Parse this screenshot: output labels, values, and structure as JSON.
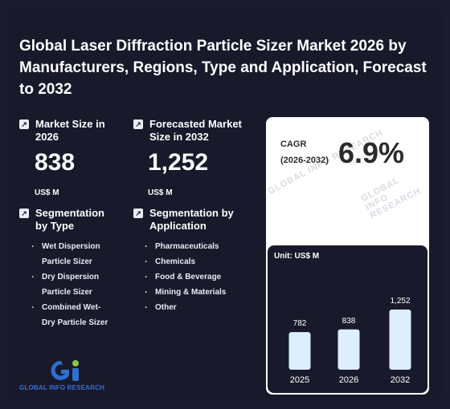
{
  "title": "Global Laser Diffraction Particle Sizer Market 2026 by Manufacturers, Regions, Type and Application, Forecast to 2032",
  "market_size": {
    "label": "Market Size in 2026",
    "value": "838",
    "unit": "US$ M"
  },
  "forecast_size": {
    "label": "Forecasted Market Size in 2032",
    "value": "1,252",
    "unit": "US$ M"
  },
  "cagr": {
    "label": "CAGR",
    "period": "(2026-2032)",
    "value": "6.9%"
  },
  "segmentation_type": {
    "label": "Segmentation by Type",
    "items": [
      "Wet Dispersion Particle Sizer",
      "Dry Dispersion Particle Sizer",
      "Combined Wet-Dry Particle Sizer"
    ]
  },
  "segmentation_application": {
    "label": "Segmentation by Application",
    "items": [
      "Pharmaceuticals",
      "Chemicals",
      "Food & Beverage",
      "Mining & Materials",
      "Other"
    ]
  },
  "watermark": "GLOBAL INFO RESEARCH",
  "logo": {
    "text": "GLOBAL INFO RESEARCH",
    "colors": {
      "green": "#8bc34a",
      "blue": "#2f6fd1"
    }
  },
  "chart_data": {
    "type": "bar",
    "unit_label": "Unit: US$ M",
    "categories": [
      "2025",
      "2026",
      "2032"
    ],
    "values": [
      782,
      838,
      1252
    ],
    "value_labels": [
      "782",
      "838",
      "1,252"
    ],
    "ylim": [
      0,
      1252
    ],
    "bar_color": "#ddeeff"
  },
  "colors": {
    "background": "#1a1c2e",
    "card": "#ffffff",
    "panel": "#181a2b"
  }
}
